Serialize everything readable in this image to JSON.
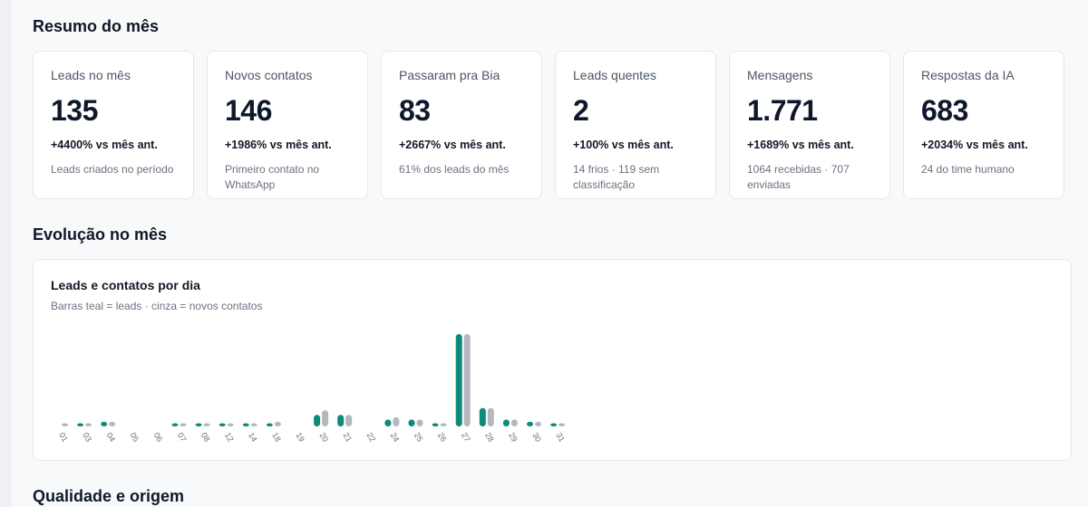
{
  "summary": {
    "title": "Resumo do mês",
    "cards": [
      {
        "label": "Leads no mês",
        "value": "135",
        "delta": "+4400% vs mês ant.",
        "sub": "Leads criados no período"
      },
      {
        "label": "Novos contatos",
        "value": "146",
        "delta": "+1986% vs mês ant.",
        "sub": "Primeiro contato no WhatsApp"
      },
      {
        "label": "Passaram pra Bia",
        "value": "83",
        "delta": "+2667% vs mês ant.",
        "sub": "61% dos leads do mês"
      },
      {
        "label": "Leads quentes",
        "value": "2",
        "delta": "+100% vs mês ant.",
        "sub": "14 frios · 119 sem classificação"
      },
      {
        "label": "Mensagens",
        "value": "1.771",
        "delta": "+1689% vs mês ant.",
        "sub": "1064 recebidas · 707 enviadas"
      },
      {
        "label": "Respostas da IA",
        "value": "683",
        "delta": "+2034% vs mês ant.",
        "sub": "24 do time humano"
      }
    ]
  },
  "evolution": {
    "title": "Evolução no mês",
    "chart_title": "Leads e contatos por dia",
    "chart_subtitle": "Barras teal = leads · cinza = novos contatos"
  },
  "quality": {
    "title": "Qualidade e origem"
  },
  "colors": {
    "leads": "#0d8a78",
    "contacts": "#b4b8bd"
  },
  "chart_data": {
    "type": "bar",
    "categories": [
      "01",
      "03",
      "04",
      "05",
      "06",
      "07",
      "08",
      "12",
      "14",
      "18",
      "19",
      "20",
      "21",
      "22",
      "24",
      "25",
      "26",
      "27",
      "28",
      "29",
      "30",
      "31"
    ],
    "series": [
      {
        "name": "leads",
        "values": [
          0,
          1,
          2,
          0,
          0,
          1,
          1,
          1,
          1,
          1,
          0,
          5,
          5,
          0,
          3,
          3,
          1,
          40,
          8,
          3,
          2,
          1
        ]
      },
      {
        "name": "novos contatos",
        "values": [
          1,
          1,
          2,
          0,
          0,
          1,
          1,
          1,
          1,
          2,
          0,
          7,
          5,
          0,
          4,
          3,
          1,
          40,
          8,
          3,
          2,
          1
        ]
      }
    ]
  }
}
